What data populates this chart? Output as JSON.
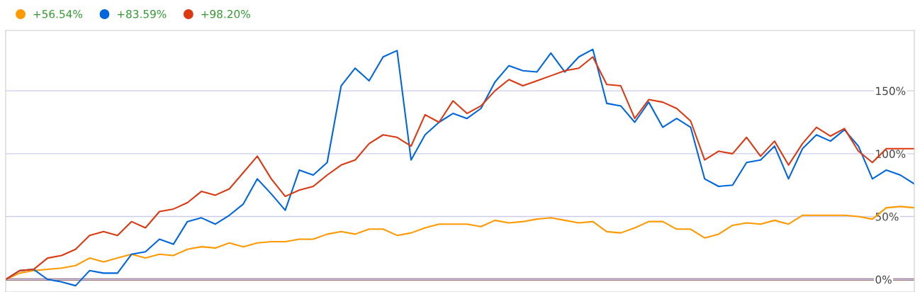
{
  "chart_data": {
    "type": "line",
    "categories": [
      null,
      null,
      null,
      null,
      null,
      null,
      null,
      null,
      null,
      null,
      null,
      null,
      null,
      null,
      null,
      null,
      null,
      null,
      null,
      null,
      null,
      null,
      null,
      null,
      null,
      null,
      null,
      null,
      null,
      null,
      null,
      null,
      null,
      null,
      null,
      null,
      null,
      null,
      null,
      null,
      null,
      null,
      null,
      null,
      null,
      null,
      null,
      null,
      null,
      null,
      null,
      null,
      null,
      null,
      null,
      null,
      null,
      null,
      null,
      null,
      null,
      null,
      null,
      null,
      null,
      null
    ],
    "series": [
      {
        "name": "+56.54%",
        "color": "#ff9900",
        "values": [
          0,
          5,
          7,
          8,
          9,
          11,
          17,
          14,
          17,
          20,
          17,
          20,
          19,
          24,
          26,
          25,
          29,
          26,
          29,
          30,
          30,
          32,
          32,
          36,
          38,
          36,
          40,
          40,
          35,
          37,
          41,
          44,
          44,
          44,
          42,
          47,
          45,
          46,
          48,
          49,
          47,
          45,
          46,
          38,
          37,
          41,
          46,
          46,
          40,
          40,
          33,
          36,
          43,
          45,
          44,
          47,
          44,
          51,
          51,
          51,
          51,
          50,
          48,
          57,
          58,
          57
        ]
      },
      {
        "name": "+83.59%",
        "color": "#0066dd",
        "values": [
          0,
          7,
          8,
          0,
          -2,
          -5,
          7,
          5,
          5,
          20,
          22,
          32,
          28,
          46,
          49,
          44,
          51,
          60,
          80,
          68,
          55,
          87,
          83,
          93,
          154,
          168,
          158,
          177,
          182,
          95,
          115,
          125,
          132,
          128,
          136,
          157,
          170,
          166,
          165,
          180,
          165,
          177,
          183,
          140,
          138,
          125,
          141,
          121,
          128,
          121,
          80,
          74,
          75,
          93,
          95,
          106,
          80,
          104,
          115,
          110,
          119,
          106,
          80,
          87,
          83,
          76
        ]
      },
      {
        "name": "+98.20%",
        "color": "#dc3912",
        "values": [
          0,
          7,
          8,
          17,
          19,
          24,
          35,
          38,
          35,
          46,
          41,
          54,
          56,
          61,
          70,
          67,
          72,
          85,
          98,
          80,
          66,
          71,
          74,
          83,
          91,
          95,
          108,
          115,
          113,
          106,
          131,
          125,
          142,
          132,
          138,
          150,
          159,
          154,
          158,
          162,
          166,
          168,
          177,
          155,
          154,
          128,
          143,
          141,
          136,
          126,
          95,
          102,
          100,
          113,
          98,
          110,
          91,
          108,
          121,
          114,
          120,
          102,
          93,
          104,
          104,
          104
        ]
      }
    ],
    "ylim": [
      -10,
      198
    ],
    "yticks": [
      {
        "value": 0,
        "label": "0%"
      },
      {
        "value": 50,
        "label": "50%"
      },
      {
        "value": 100,
        "label": "100%"
      },
      {
        "value": 150,
        "label": "150%"
      }
    ],
    "ref_lines": [
      {
        "axis": "y",
        "value": 0,
        "label": null,
        "color": "#7b4444"
      }
    ],
    "grid": "y",
    "legend": "top left",
    "marker": "none",
    "line_style": "solid"
  }
}
